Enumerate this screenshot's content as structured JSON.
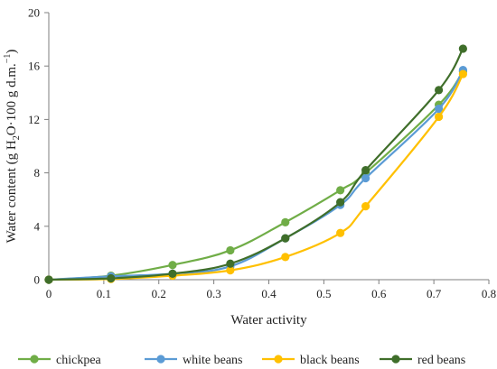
{
  "chart_data": {
    "type": "line",
    "xlabel": "Water activity",
    "ylabel_parts": [
      "Water content (g H",
      "2",
      "O·100 g d.m.",
      "−1",
      ")"
    ],
    "xlim": [
      0,
      0.8
    ],
    "ylim": [
      0,
      20
    ],
    "xticks": [
      0,
      0.1,
      0.2,
      0.3,
      0.4,
      0.5,
      0.6,
      0.7,
      0.8
    ],
    "xtick_labels": [
      "0",
      "0.1",
      "0.2",
      "0.3",
      "0.4",
      "0.5",
      "0.6",
      "0.7",
      "0.8"
    ],
    "yticks": [
      0,
      4,
      8,
      12,
      16,
      20
    ],
    "ytick_labels": [
      "0",
      "4",
      "8",
      "12",
      "16",
      "20"
    ],
    "grid": false,
    "legend_position": "bottom",
    "series": [
      {
        "name": "chickpea",
        "color": "#70ad47",
        "points": [
          [
            0,
            0
          ],
          [
            0.113,
            0.3
          ],
          [
            0.225,
            1.1
          ],
          [
            0.33,
            2.2
          ],
          [
            0.43,
            4.3
          ],
          [
            0.53,
            6.7
          ],
          [
            0.576,
            8.0
          ],
          [
            0.709,
            13.1
          ],
          [
            0.753,
            15.6
          ]
        ]
      },
      {
        "name": "white beans",
        "color": "#5b9bd5",
        "points": [
          [
            0,
            0
          ],
          [
            0.113,
            0.25
          ],
          [
            0.225,
            0.45
          ],
          [
            0.33,
            1.0
          ],
          [
            0.43,
            3.1
          ],
          [
            0.53,
            5.6
          ],
          [
            0.576,
            7.6
          ],
          [
            0.709,
            12.8
          ],
          [
            0.753,
            15.7
          ]
        ]
      },
      {
        "name": "black beans",
        "color": "#ffc000",
        "points": [
          [
            0,
            0
          ],
          [
            0.113,
            0.05
          ],
          [
            0.225,
            0.3
          ],
          [
            0.33,
            0.7
          ],
          [
            0.43,
            1.7
          ],
          [
            0.53,
            3.5
          ],
          [
            0.576,
            5.5
          ],
          [
            0.709,
            12.2
          ],
          [
            0.753,
            15.4
          ]
        ]
      },
      {
        "name": "red beans",
        "color": "#3f6e2a",
        "points": [
          [
            0,
            0
          ],
          [
            0.113,
            0.1
          ],
          [
            0.225,
            0.45
          ],
          [
            0.33,
            1.2
          ],
          [
            0.43,
            3.1
          ],
          [
            0.53,
            5.8
          ],
          [
            0.576,
            8.2
          ],
          [
            0.709,
            14.2
          ],
          [
            0.753,
            17.3
          ]
        ]
      }
    ]
  }
}
